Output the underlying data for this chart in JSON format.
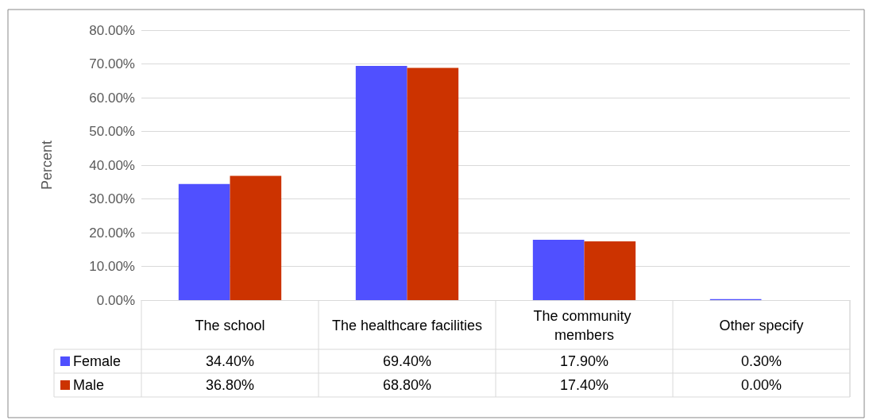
{
  "chart_data": {
    "type": "bar",
    "ylabel": "Percent",
    "categories": [
      "The school",
      "The healthcare facilities",
      "The community members",
      "Other specify"
    ],
    "series": [
      {
        "name": "Female",
        "color": "#5050ff",
        "values": [
          34.4,
          69.4,
          17.9,
          0.3
        ],
        "value_labels": [
          "34.40%",
          "69.40%",
          "17.90%",
          "0.30%"
        ]
      },
      {
        "name": "Male",
        "color": "#cc3300",
        "values": [
          36.8,
          68.8,
          17.4,
          0.0
        ],
        "value_labels": [
          "36.80%",
          "68.80%",
          "17.40%",
          "0.00%"
        ]
      }
    ],
    "ylim": [
      0,
      80
    ],
    "yticks": [
      {
        "value": 0,
        "label": "0.00%"
      },
      {
        "value": 10,
        "label": "10.00%"
      },
      {
        "value": 20,
        "label": "20.00%"
      },
      {
        "value": 30,
        "label": "30.00%"
      },
      {
        "value": 40,
        "label": "40.00%"
      },
      {
        "value": 50,
        "label": "50.00%"
      },
      {
        "value": 60,
        "label": "60.00%"
      },
      {
        "value": 70,
        "label": "70.00%"
      },
      {
        "value": 80,
        "label": "80.00%"
      }
    ],
    "grid": "y",
    "legend": "bottom"
  }
}
